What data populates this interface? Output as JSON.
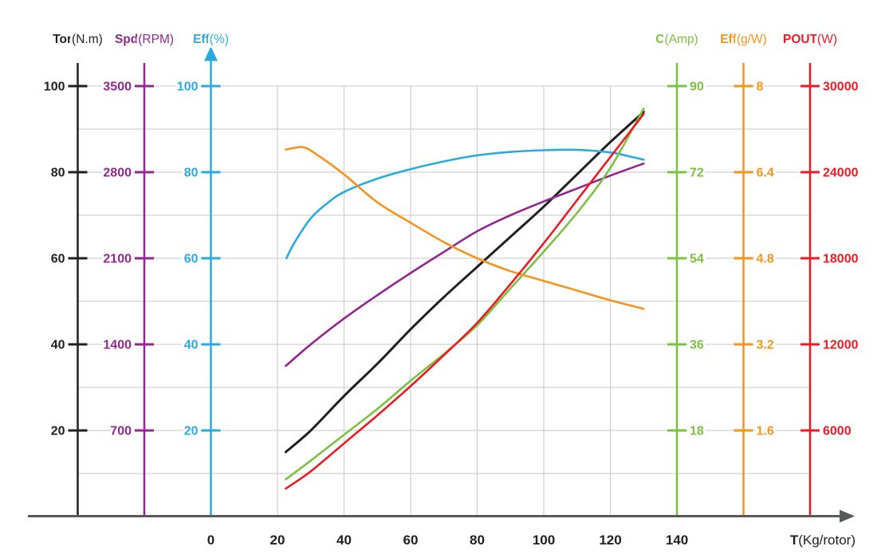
{
  "chart_data": {
    "type": "line",
    "title": "",
    "grid": "on",
    "background_color": "#ffffff",
    "gridline_color": "#d2d2d2",
    "x_axis": {
      "title_bold": "T",
      "title_rest": "(Kg/rotor)",
      "ticks": [
        0,
        20,
        40,
        60,
        80,
        100,
        120,
        140
      ],
      "range": [
        -40,
        180
      ],
      "line_color": "#58595b",
      "label_color": "#231f20"
    },
    "y_axes": [
      {
        "id": "tor",
        "title_bold": "Tor",
        "title_rest": "(N.m)",
        "color": "#231f20",
        "position_t": -40,
        "side": "left",
        "ticks": [
          100,
          80,
          60,
          40,
          20
        ],
        "max": 100,
        "arrow": false
      },
      {
        "id": "spd",
        "title_bold": "Spd",
        "title_rest": "(RPM)",
        "color": "#92278f",
        "position_t": -20,
        "side": "left",
        "ticks": [
          3500,
          2800,
          2100,
          1400,
          700
        ],
        "max": 3500,
        "arrow": false
      },
      {
        "id": "effpct",
        "title_bold": "Eff",
        "title_rest": "(%)",
        "color": "#29abe2",
        "position_t": 0,
        "side": "left",
        "ticks": [
          100,
          80,
          60,
          40,
          20
        ],
        "max": 100,
        "arrow": true
      },
      {
        "id": "c",
        "title_bold": "C",
        "title_rest": "(Amp)",
        "color": "#7cc142",
        "position_t": 140,
        "side": "right",
        "ticks": [
          90,
          72,
          54,
          36,
          18
        ],
        "max": 90,
        "arrow": false
      },
      {
        "id": "effgw",
        "title_bold": "Eff",
        "title_rest": "(g/W)",
        "color": "#f7941e",
        "position_t": 160,
        "side": "right",
        "ticks": [
          8,
          6.4,
          4.8,
          3.2,
          1.6
        ],
        "max": 8,
        "arrow": false
      },
      {
        "id": "pout",
        "title_bold": "POUT",
        "title_rest": "(W)",
        "color": "#ed1c24",
        "position_t": 180,
        "side": "right",
        "ticks": [
          30000,
          24000,
          18000,
          12000,
          6000
        ],
        "max": 30000,
        "arrow": false
      }
    ],
    "series": [
      {
        "name": "Tor",
        "axis": "tor",
        "color": "#231f20",
        "width": 3,
        "points": [
          [
            22.5,
            15
          ],
          [
            30,
            20
          ],
          [
            40,
            28
          ],
          [
            50,
            35.5
          ],
          [
            60,
            43.5
          ],
          [
            70,
            51
          ],
          [
            80,
            58
          ],
          [
            90,
            65
          ],
          [
            100,
            72
          ],
          [
            110,
            79.5
          ],
          [
            120,
            87
          ],
          [
            130,
            94
          ]
        ]
      },
      {
        "name": "Spd",
        "axis": "spd",
        "color": "#92278f",
        "width": 2.6,
        "points": [
          [
            22.5,
            1225
          ],
          [
            30,
            1400
          ],
          [
            40,
            1610
          ],
          [
            50,
            1800
          ],
          [
            60,
            1980
          ],
          [
            70,
            2152
          ],
          [
            80,
            2320
          ],
          [
            90,
            2450
          ],
          [
            100,
            2562
          ],
          [
            110,
            2667
          ],
          [
            120,
            2772
          ],
          [
            130,
            2870
          ]
        ]
      },
      {
        "name": "Eff %",
        "axis": "effpct",
        "color": "#29abe2",
        "width": 2.6,
        "points": [
          [
            22.7,
            60
          ],
          [
            25,
            63.5
          ],
          [
            30,
            69.3
          ],
          [
            35,
            72.8
          ],
          [
            40,
            75.4
          ],
          [
            50,
            78.5
          ],
          [
            60,
            80.7
          ],
          [
            70,
            82.5
          ],
          [
            80,
            83.9
          ],
          [
            90,
            84.7
          ],
          [
            100,
            85.1
          ],
          [
            110,
            85.2
          ],
          [
            120,
            84.6
          ],
          [
            125,
            83.8
          ],
          [
            130,
            82.9
          ]
        ]
      },
      {
        "name": "C",
        "axis": "c",
        "color": "#7cc142",
        "width": 2.6,
        "points": [
          [
            22.5,
            7.8
          ],
          [
            30,
            11.7
          ],
          [
            40,
            17.1
          ],
          [
            50,
            22.5
          ],
          [
            60,
            28.4
          ],
          [
            70,
            34
          ],
          [
            80,
            40
          ],
          [
            90,
            47.7
          ],
          [
            100,
            55.4
          ],
          [
            110,
            63.5
          ],
          [
            120,
            72.9
          ],
          [
            130,
            85.3
          ]
        ]
      },
      {
        "name": "Eff g/W",
        "axis": "effgw",
        "color": "#f7941e",
        "width": 2.6,
        "points": [
          [
            22.5,
            6.82
          ],
          [
            25,
            6.85
          ],
          [
            28,
            6.86
          ],
          [
            32,
            6.72
          ],
          [
            40,
            6.36
          ],
          [
            50,
            5.84
          ],
          [
            60,
            5.46
          ],
          [
            70,
            5.1
          ],
          [
            80,
            4.8
          ],
          [
            90,
            4.56
          ],
          [
            100,
            4.38
          ],
          [
            110,
            4.2
          ],
          [
            120,
            4.02
          ],
          [
            130,
            3.86
          ]
        ]
      },
      {
        "name": "POUT",
        "axis": "pout",
        "color": "#ed1c24",
        "width": 2.6,
        "points": [
          [
            22.5,
            1950
          ],
          [
            30,
            3150
          ],
          [
            40,
            5100
          ],
          [
            50,
            7050
          ],
          [
            60,
            9090
          ],
          [
            70,
            11250
          ],
          [
            80,
            13500
          ],
          [
            90,
            16200
          ],
          [
            100,
            19050
          ],
          [
            110,
            22050
          ],
          [
            120,
            25050
          ],
          [
            130,
            28050
          ]
        ]
      }
    ]
  }
}
